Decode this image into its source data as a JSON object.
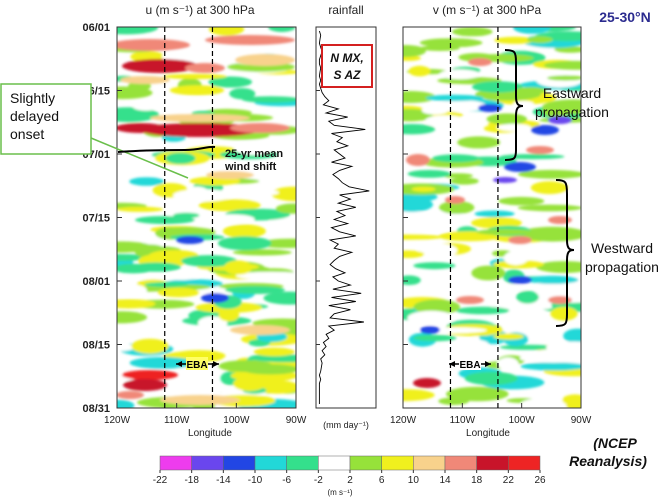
{
  "region_label": "25-30°N",
  "source_note": "(NCEP Reanalysis)",
  "colors": {
    "region": "#2b2b8f",
    "callout": "#6abf4b",
    "box": "#d42020"
  },
  "chart_data": [
    {
      "type": "heatmap",
      "title": "u (m s⁻¹) at 300 hPa",
      "xlabel": "Longitude",
      "x_ticks": [
        "120W",
        "110W",
        "100W",
        "90W"
      ],
      "xlim": [
        -120,
        -90
      ],
      "date_ticks": [
        "06/01",
        "06/15",
        "07/01",
        "07/15",
        "08/01",
        "08/15",
        "08/31"
      ],
      "dashed_lines_lon": [
        -112,
        -104
      ],
      "region_annotation": "EBA",
      "annotations": [
        "25-yr mean wind shift"
      ]
    },
    {
      "type": "line",
      "title": "rainfall",
      "xlabel": "(mm day⁻¹)",
      "box_label": "N MX, S AZ",
      "values": [
        0.1,
        0.2,
        0.15,
        0.1,
        0.2,
        0.3,
        0.2,
        0.1,
        0.1,
        0.2,
        0.15,
        0.1,
        0.2,
        0.1,
        0.2,
        0.3,
        0.5,
        0.8,
        0.4,
        1.5,
        0.6,
        2.2,
        0.8,
        1.2,
        3.5,
        1.0,
        1.8,
        1.4,
        2.2,
        1.2,
        1.6,
        2.0,
        1.0,
        2.5,
        1.6,
        1.1,
        1.5,
        1.8,
        2.3,
        3.8,
        1.6,
        2.4,
        1.5,
        2.8,
        1.4,
        2.0,
        1.2,
        2.2,
        1.0,
        1.6,
        2.8,
        0.9,
        1.5,
        1.2,
        2.5,
        1.6,
        1.2,
        0.9,
        1.3,
        2.0,
        1.1,
        1.5,
        2.4,
        1.1,
        3.2,
        1.0,
        2.8,
        0.8,
        2.4,
        1.2,
        0.9,
        3.4,
        0.8,
        1.2,
        0.6,
        0.8,
        0.4,
        0.6,
        0.3,
        0.5,
        0.2,
        0.3,
        0.25,
        0.2,
        0.1,
        0.2,
        0.1,
        0.1,
        0.1,
        0.1,
        0.1,
        0.1
      ],
      "ylim": [
        0,
        4
      ]
    },
    {
      "type": "heatmap",
      "title": "v (m s⁻¹) at 300 hPa",
      "xlabel": "Longitude",
      "x_ticks": [
        "120W",
        "110W",
        "100W",
        "90W"
      ],
      "xlim": [
        -120,
        -90
      ],
      "date_ticks": [
        "06/01",
        "06/15",
        "07/01",
        "07/15",
        "08/01",
        "08/15",
        "08/31"
      ],
      "dashed_lines_lon": [
        -112,
        -104
      ],
      "region_annotation": "EBA",
      "annotations": [
        "Eastward propagation",
        "Westward propagation"
      ]
    }
  ],
  "callout": {
    "text_lines": [
      "Slightly",
      "delayed",
      "onset"
    ]
  },
  "colorbar": {
    "levels": [
      "-22",
      "-18",
      "-14",
      "-10",
      "-6",
      "-2",
      "2",
      "6",
      "10",
      "14",
      "18",
      "22",
      "26"
    ],
    "colors": [
      "#ee3cee",
      "#6a46ee",
      "#2246e4",
      "#22d8d8",
      "#34e08c",
      "#ffffff",
      "#96e23a",
      "#f0f01e",
      "#f8d28c",
      "#f08878",
      "#c8142a",
      "#ee2424"
    ],
    "unit_label": "(m s⁻¹)"
  },
  "labels": {
    "eastward": [
      "Eastward",
      "propagation"
    ],
    "westward": [
      "Westward",
      "propagation"
    ],
    "wind_shift": [
      "25-yr mean",
      "wind shift"
    ],
    "box": [
      "N MX,",
      "S AZ"
    ],
    "ncep_1": "(NCEP",
    "ncep_2": "Reanalysis)"
  }
}
